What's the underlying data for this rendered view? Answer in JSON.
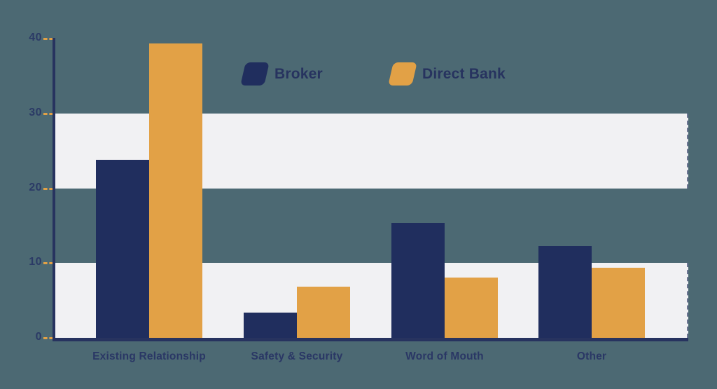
{
  "chart_data": {
    "type": "bar",
    "title": "",
    "xlabel": "",
    "ylabel": "",
    "categories": [
      "Existing Relationship",
      "Safety & Security",
      "Word of Mouth",
      "Other"
    ],
    "series": [
      {
        "name": "Broker",
        "color": "#202E5E",
        "values": [
          23.8,
          3.4,
          15.4,
          12.3
        ]
      },
      {
        "name": "Direct Bank",
        "color": "#E2A146",
        "values": [
          39.3,
          6.8,
          8.1,
          9.4
        ]
      }
    ],
    "ylim": [
      0,
      40
    ],
    "yticks": [
      0,
      10,
      20,
      30,
      40
    ],
    "highlight_bands": [
      [
        0,
        10
      ],
      [
        20,
        30
      ]
    ],
    "legend_position": "top-center",
    "grid": "horizontal-bands"
  },
  "style": {
    "background_color": "#4C6973",
    "band_color": "#F1F1F3",
    "axis_color": "#27335F",
    "tick_dash_color": "#E2A146",
    "label_color": "#2A3765"
  }
}
